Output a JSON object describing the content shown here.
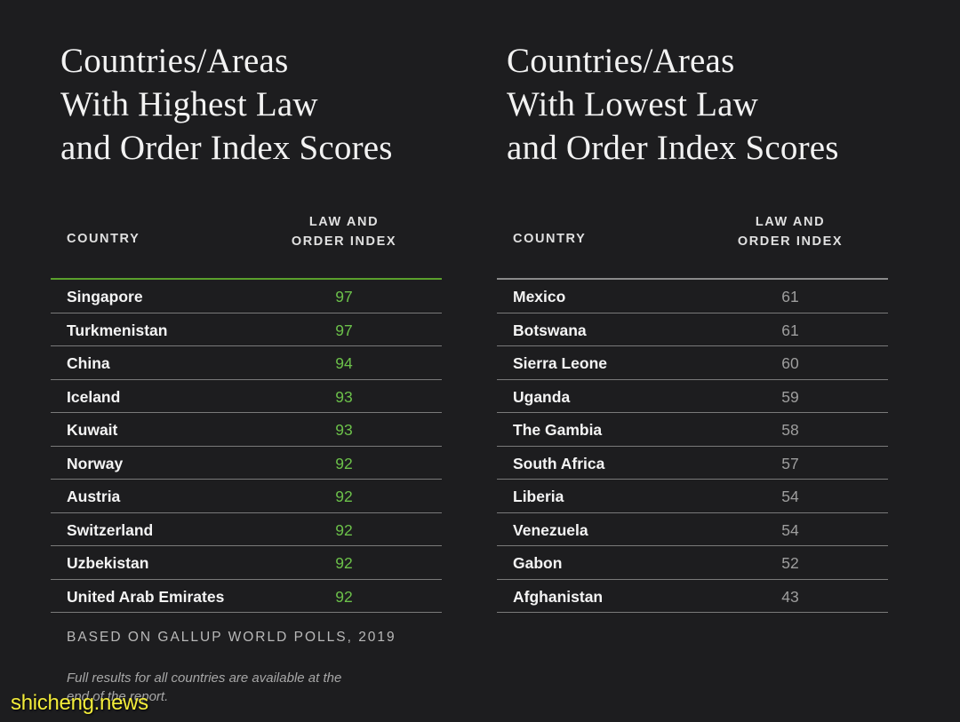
{
  "left": {
    "title_lines": [
      "Countries/Areas",
      "With Highest Law",
      "and Order Index Scores"
    ],
    "header": {
      "country": "COUNTRY",
      "index_line1": "LAW AND",
      "index_line2": "ORDER INDEX"
    },
    "rows": [
      {
        "country": "Singapore",
        "score": "97"
      },
      {
        "country": "Turkmenistan",
        "score": "97"
      },
      {
        "country": "China",
        "score": "94"
      },
      {
        "country": "Iceland",
        "score": "93"
      },
      {
        "country": "Kuwait",
        "score": "93"
      },
      {
        "country": "Norway",
        "score": "92"
      },
      {
        "country": "Austria",
        "score": "92"
      },
      {
        "country": "Switzerland",
        "score": "92"
      },
      {
        "country": "Uzbekistan",
        "score": "92"
      },
      {
        "country": "United Arab Emirates",
        "score": "92"
      }
    ]
  },
  "right": {
    "title_lines": [
      "Countries/Areas",
      "With Lowest Law",
      "and Order Index Scores"
    ],
    "header": {
      "country": "COUNTRY",
      "index_line1": "LAW AND",
      "index_line2": "ORDER INDEX"
    },
    "rows": [
      {
        "country": "Mexico",
        "score": "61"
      },
      {
        "country": "Botswana",
        "score": "61"
      },
      {
        "country": "Sierra Leone",
        "score": "60"
      },
      {
        "country": "Uganda",
        "score": "59"
      },
      {
        "country": "The Gambia",
        "score": "58"
      },
      {
        "country": "South Africa",
        "score": "57"
      },
      {
        "country": "Liberia",
        "score": "54"
      },
      {
        "country": "Venezuela",
        "score": "54"
      },
      {
        "country": "Gabon",
        "score": "52"
      },
      {
        "country": "Afghanistan",
        "score": "43"
      }
    ]
  },
  "footer": {
    "source": "BASED ON GALLUP WORLD POLLS, 2019",
    "note": "Full results for all countries are available at the end of the report."
  },
  "watermark": "shicheng.news",
  "colors": {
    "background": "#1d1d1f",
    "high_score": "#6cc14a",
    "low_score": "#9e9e9e",
    "high_header_rule": "#5aa02c",
    "watermark": "#f3ec3a"
  }
}
